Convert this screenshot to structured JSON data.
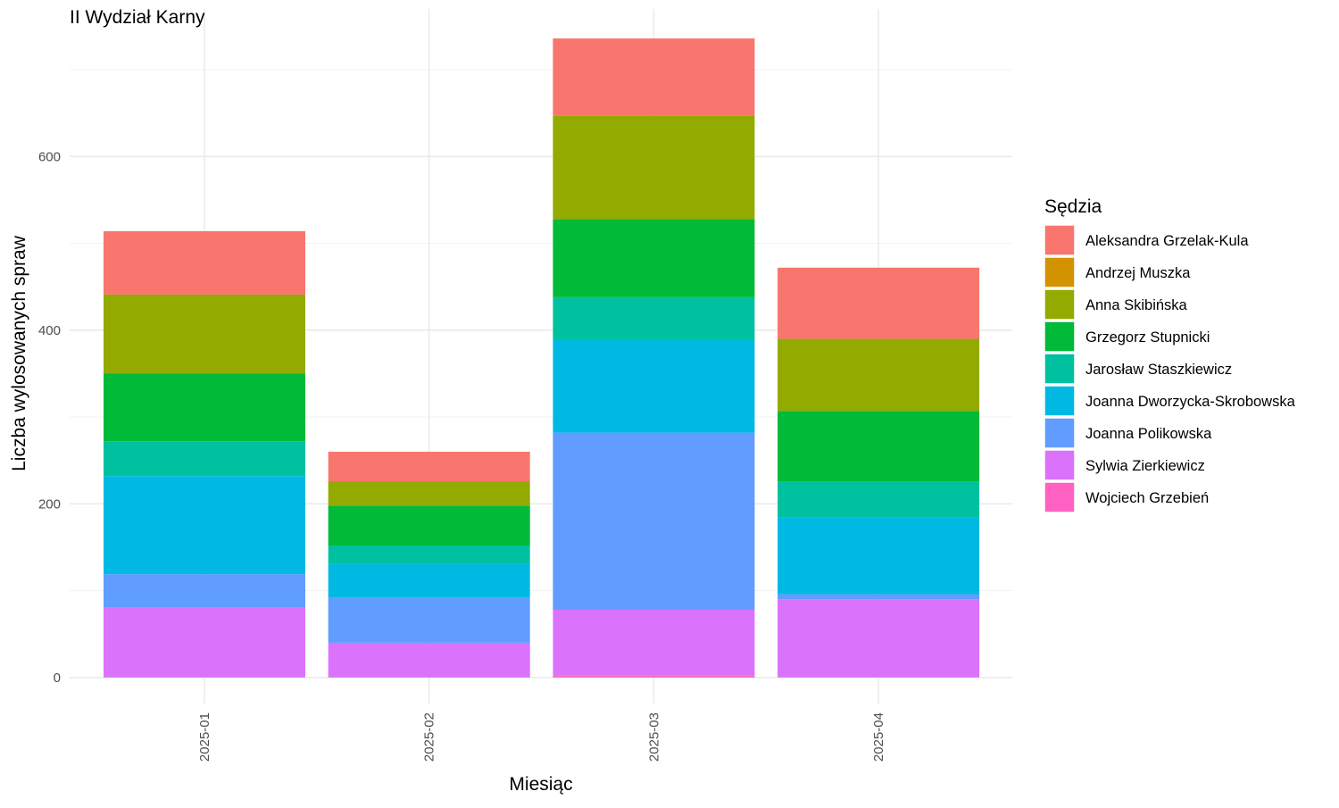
{
  "chart_data": {
    "type": "bar",
    "stacked": true,
    "title": "II Wydział Karny",
    "xlabel": "Miesiąc",
    "ylabel": "Liczba wylosowanych spraw",
    "ylim": [
      -30,
      770
    ],
    "yticks": [
      0,
      200,
      400,
      600
    ],
    "ytick_labels": [
      "0",
      "200",
      "400",
      "600"
    ],
    "grid": true,
    "legend_title": "Sędzia",
    "legend_position": "right",
    "categories": [
      "2025-01",
      "2025-02",
      "2025-03",
      "2025-04"
    ],
    "series": [
      {
        "name": "Aleksandra Grzelak-Kula",
        "color": "#F8766D",
        "values": [
          73,
          34,
          89,
          82
        ]
      },
      {
        "name": "Andrzej Muszka",
        "color": "#D39200",
        "values": [
          0,
          0,
          0,
          0
        ]
      },
      {
        "name": "Anna Skibińska",
        "color": "#93AA00",
        "values": [
          91,
          28,
          119,
          83
        ]
      },
      {
        "name": "Grzegorz Stupnicki",
        "color": "#00BA38",
        "values": [
          78,
          46,
          90,
          81
        ]
      },
      {
        "name": "Jarosław Staszkiewicz",
        "color": "#00C19F",
        "values": [
          40,
          21,
          49,
          42
        ]
      },
      {
        "name": "Joanna Dworzycka-Skrobowska",
        "color": "#00B9E3",
        "values": [
          113,
          39,
          107,
          88
        ]
      },
      {
        "name": "Joanna Polikowska",
        "color": "#619CFF",
        "values": [
          38,
          52,
          204,
          6
        ]
      },
      {
        "name": "Sylwia Zierkiewicz",
        "color": "#DB72FB",
        "values": [
          81,
          40,
          76,
          90
        ]
      },
      {
        "name": "Wojciech Grzebień",
        "color": "#FF61C3",
        "values": [
          0,
          0,
          2,
          0
        ]
      }
    ]
  }
}
